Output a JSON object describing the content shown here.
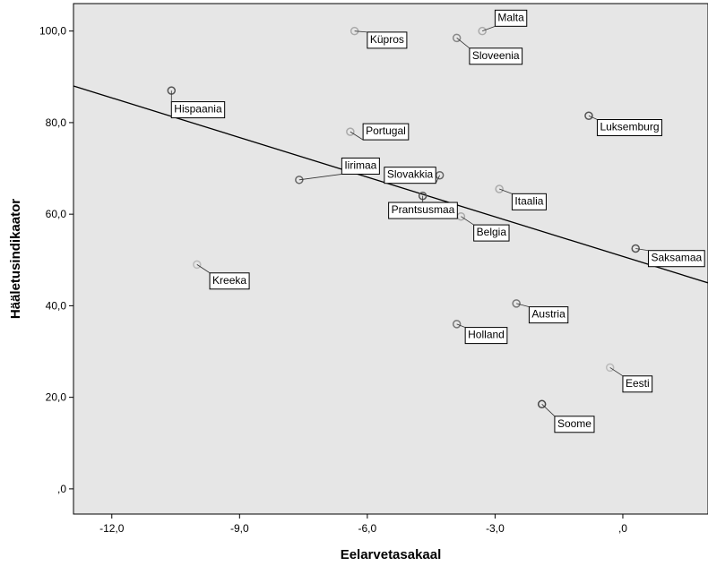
{
  "chart_data": {
    "type": "scatter",
    "xlabel": "Eelarvetasakaal",
    "ylabel": "Hääletusindikaator",
    "xlim": [
      -12.9,
      2.0
    ],
    "ylim": [
      -5.5,
      106.0
    ],
    "x_ticks": [
      {
        "value": -12,
        "label": "-12,0"
      },
      {
        "value": -9,
        "label": "-9,0"
      },
      {
        "value": -6,
        "label": "-6,0"
      },
      {
        "value": -3,
        "label": "-3,0"
      },
      {
        "value": 0,
        "label": ",0"
      }
    ],
    "y_ticks": [
      {
        "value": 0,
        "label": ",0"
      },
      {
        "value": 20,
        "label": "20,0"
      },
      {
        "value": 40,
        "label": "40,0"
      },
      {
        "value": 60,
        "label": "60,0"
      },
      {
        "value": 80,
        "label": "80,0"
      },
      {
        "value": 100,
        "label": "100,0"
      }
    ],
    "grid": false,
    "background": "#e6e6e6",
    "fit_line": {
      "x": [
        -12.9,
        2.0
      ],
      "y": [
        88.0,
        45.0
      ]
    },
    "points": [
      {
        "name": "Malta",
        "x": -3.3,
        "y": 100.0,
        "label_dx": 0.3,
        "label_dy": 3.0,
        "ring": "#aaaaaa"
      },
      {
        "name": "Küpros",
        "x": -6.3,
        "y": 100.0,
        "label_dx": 0.3,
        "label_dy": -1.8,
        "ring": "#aaaaaa"
      },
      {
        "name": "Sloveenia",
        "x": -3.9,
        "y": 98.5,
        "label_dx": 0.3,
        "label_dy": -3.8,
        "ring": "#888888"
      },
      {
        "name": "Hispaania",
        "x": -10.6,
        "y": 87.0,
        "label_dx": 0.0,
        "label_dy": -4.0,
        "ring": "#555555"
      },
      {
        "name": "Luksemburg",
        "x": -0.8,
        "y": 81.5,
        "label_dx": 0.2,
        "label_dy": -2.4,
        "ring": "#555555"
      },
      {
        "name": "Portugal",
        "x": -6.4,
        "y": 78.0,
        "label_dx": 0.3,
        "label_dy": 0.2,
        "ring": "#aaaaaa"
      },
      {
        "name": "Iirimaa",
        "x": -7.6,
        "y": 67.5,
        "label_dx": 1.0,
        "label_dy": 3.2,
        "ring": "#666666"
      },
      {
        "name": "Slovakkia",
        "x": -4.3,
        "y": 68.5,
        "label_dx": -1.3,
        "label_dy": 0.2,
        "ring": "#666666"
      },
      {
        "name": "Prantsusmaa",
        "x": -4.7,
        "y": 64.0,
        "label_dx": -0.8,
        "label_dy": -3.0,
        "ring": "#555555"
      },
      {
        "name": "Itaalia",
        "x": -2.9,
        "y": 65.5,
        "label_dx": 0.3,
        "label_dy": -2.6,
        "ring": "#aaaaaa"
      },
      {
        "name": "Belgia",
        "x": -3.8,
        "y": 59.5,
        "label_dx": 0.3,
        "label_dy": -3.4,
        "ring": "#aaaaaa"
      },
      {
        "name": "Saksamaa",
        "x": 0.3,
        "y": 52.5,
        "label_dx": 0.3,
        "label_dy": -2.0,
        "ring": "#555555"
      },
      {
        "name": "Kreeka",
        "x": -10.0,
        "y": 49.0,
        "label_dx": 0.3,
        "label_dy": -3.4,
        "ring": "#bbbbbb"
      },
      {
        "name": "Austria",
        "x": -2.5,
        "y": 40.5,
        "label_dx": 0.3,
        "label_dy": -2.3,
        "ring": "#777777"
      },
      {
        "name": "Holland",
        "x": -3.9,
        "y": 36.0,
        "label_dx": 0.2,
        "label_dy": -2.3,
        "ring": "#777777"
      },
      {
        "name": "Eesti",
        "x": -0.3,
        "y": 26.5,
        "label_dx": 0.3,
        "label_dy": -3.4,
        "ring": "#bbbbbb"
      },
      {
        "name": "Soome",
        "x": -1.9,
        "y": 18.5,
        "label_dx": 0.3,
        "label_dy": -4.2,
        "ring": "#444444"
      }
    ]
  }
}
